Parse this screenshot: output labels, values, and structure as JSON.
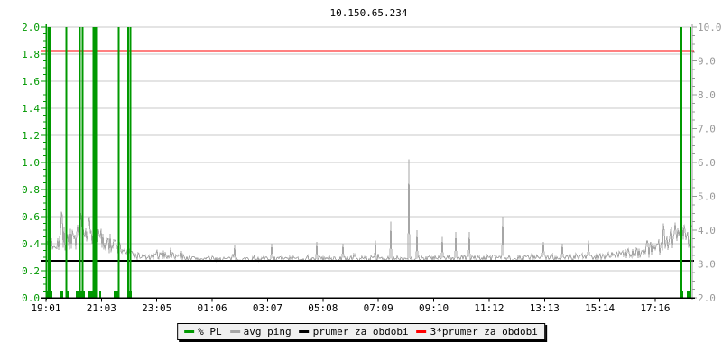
{
  "chart_data": {
    "type": "line",
    "title": "10.150.65.234",
    "grid": {
      "horizontal": true,
      "vertical": false,
      "step_left_units": 0.2,
      "color": "#c9c9c9"
    },
    "x_axis": {
      "tick_labels": [
        "19:01",
        "21:03",
        "23:05",
        "01:06",
        "03:07",
        "05:08",
        "07:09",
        "09:10",
        "11:12",
        "13:13",
        "15:14",
        "17:16"
      ],
      "color": "#000000"
    },
    "left_axis": {
      "range": [
        0.0,
        2.0
      ],
      "tick_step": 0.2,
      "minor_tick_step": 0.05,
      "tick_labels": [
        "2.0",
        "1.8",
        "1.6",
        "1.4",
        "1.2",
        "1.0",
        "0.8",
        "0.6",
        "0.4",
        "0.2",
        "0.0"
      ],
      "color": "#009900"
    },
    "right_axis": {
      "range": [
        2.0,
        10.0
      ],
      "tick_step": 1.0,
      "minor_tick_step": 0.25,
      "tick_labels": [
        "10.0",
        "9.0",
        "8.0",
        "7.0",
        "6.0",
        "5.0",
        "4.0",
        "3.0",
        "2.0"
      ],
      "color": "#999999"
    },
    "legend": {
      "position": "bottom",
      "items": [
        {
          "label": "% PL",
          "color": "#009900"
        },
        {
          "label": "avg ping",
          "color": "#a6a6a6"
        },
        {
          "label": "prumer za obdobi",
          "color": "#000000"
        },
        {
          "label": "3*prumer za obdobi",
          "color": "#ff0000"
        }
      ]
    },
    "series": [
      {
        "name": "% PL",
        "type": "bar",
        "axis": "left",
        "color": "#009900",
        "full_bars_x_frac": [
          0.0035,
          0.0063,
          0.0312,
          0.0524,
          0.0566,
          0.0734,
          0.0762,
          0.079,
          0.1129,
          0.1273,
          0.1308,
          0.9846,
          0.9986
        ],
        "full_bar_value": 2.0,
        "small_bars": [
          {
            "from": 0.0014,
            "to": 0.0098,
            "value": 0.055
          },
          {
            "from": 0.0224,
            "to": 0.0266,
            "value": 0.055
          },
          {
            "from": 0.0308,
            "to": 0.035,
            "value": 0.055
          },
          {
            "from": 0.0462,
            "to": 0.0601,
            "value": 0.055
          },
          {
            "from": 0.0657,
            "to": 0.0797,
            "value": 0.055
          },
          {
            "from": 0.0825,
            "to": 0.0853,
            "value": 0.055
          },
          {
            "from": 0.1049,
            "to": 0.1119,
            "value": 0.055
          },
          {
            "from": 0.1259,
            "to": 0.1329,
            "value": 0.055
          },
          {
            "from": 0.9818,
            "to": 0.9874,
            "value": 0.055
          },
          {
            "from": 0.993,
            "to": 1.0,
            "value": 0.055
          }
        ]
      },
      {
        "name": "avg ping",
        "type": "noisy-line",
        "axis": "right",
        "color": "#a6a6a6",
        "seed": 7,
        "profile": [
          [
            0.0,
            3.45,
            0.2
          ],
          [
            0.008,
            3.6,
            0.3
          ],
          [
            0.02,
            3.75,
            0.4
          ],
          [
            0.04,
            3.7,
            0.4
          ],
          [
            0.06,
            3.85,
            0.45
          ],
          [
            0.08,
            3.75,
            0.4
          ],
          [
            0.095,
            3.6,
            0.35
          ],
          [
            0.11,
            3.5,
            0.28
          ],
          [
            0.125,
            3.38,
            0.2
          ],
          [
            0.14,
            3.25,
            0.12
          ],
          [
            0.16,
            3.18,
            0.08
          ],
          [
            0.185,
            3.28,
            0.14
          ],
          [
            0.205,
            3.22,
            0.1
          ],
          [
            0.23,
            3.16,
            0.07
          ],
          [
            0.3,
            3.15,
            0.07
          ],
          [
            0.4,
            3.16,
            0.07
          ],
          [
            0.5,
            3.16,
            0.08
          ],
          [
            0.6,
            3.17,
            0.08
          ],
          [
            0.7,
            3.18,
            0.09
          ],
          [
            0.78,
            3.2,
            0.09
          ],
          [
            0.85,
            3.22,
            0.1
          ],
          [
            0.9,
            3.3,
            0.14
          ],
          [
            0.93,
            3.4,
            0.22
          ],
          [
            0.955,
            3.6,
            0.35
          ],
          [
            0.975,
            3.85,
            0.45
          ],
          [
            1.0,
            3.95,
            0.45
          ]
        ],
        "spikes": [
          [
            0.024,
            4.55
          ],
          [
            0.055,
            4.4
          ],
          [
            0.075,
            4.5
          ],
          [
            0.292,
            3.55
          ],
          [
            0.35,
            3.6
          ],
          [
            0.42,
            3.65
          ],
          [
            0.46,
            3.6
          ],
          [
            0.51,
            3.7
          ],
          [
            0.534,
            4.25
          ],
          [
            0.562,
            6.1
          ],
          [
            0.575,
            4.0
          ],
          [
            0.614,
            3.8
          ],
          [
            0.635,
            3.95
          ],
          [
            0.656,
            3.95
          ],
          [
            0.708,
            4.4
          ],
          [
            0.77,
            3.65
          ],
          [
            0.8,
            3.6
          ],
          [
            0.84,
            3.7
          ]
        ]
      },
      {
        "name": "prumer za obdobi",
        "type": "hline",
        "axis": "right",
        "color": "#000000",
        "value": 3.1,
        "width": 2
      },
      {
        "name": "3*prumer za obdobi",
        "type": "hline",
        "axis": "right",
        "color": "#ff0000",
        "value": 9.3,
        "width": 2
      }
    ]
  }
}
